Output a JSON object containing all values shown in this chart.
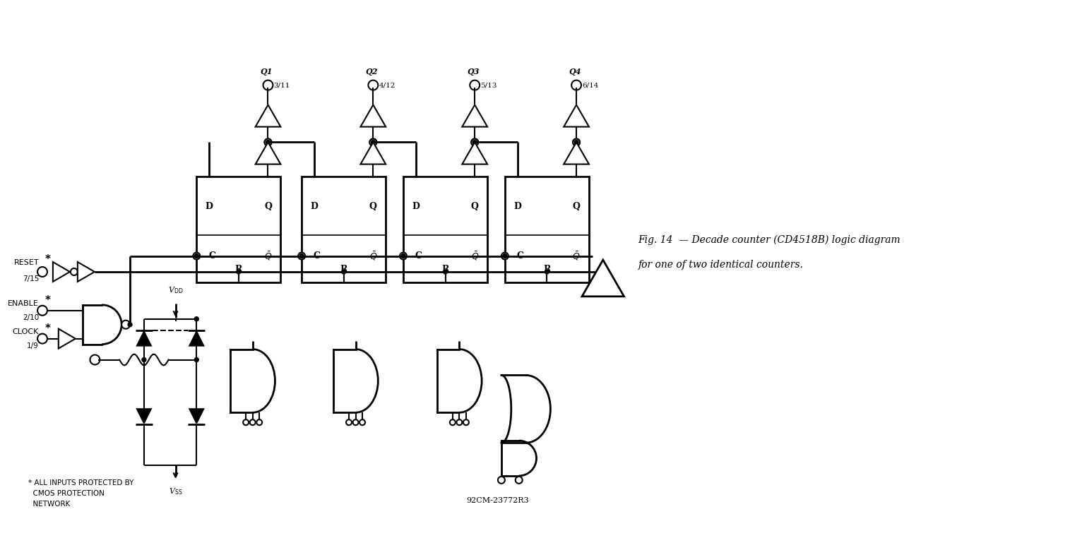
{
  "caption_line1": "Fig. 14  — Decade counter (CD4518B) logic diagram",
  "caption_line2": "for one of two identical counters.",
  "bottom_label": "92CM-23772R3",
  "footnote": "* ALL INPUTS PROTECTED BY\n  CMOS PROTECTION\n  NETWORK",
  "bg_color": "#ffffff",
  "fig_width": 15.15,
  "fig_height": 7.62,
  "dpi": 100,
  "q_labels": [
    "Q1",
    "Q2",
    "Q3",
    "Q4"
  ],
  "pin_labels": [
    "3/11",
    "4/12",
    "5/13",
    "6/14"
  ]
}
